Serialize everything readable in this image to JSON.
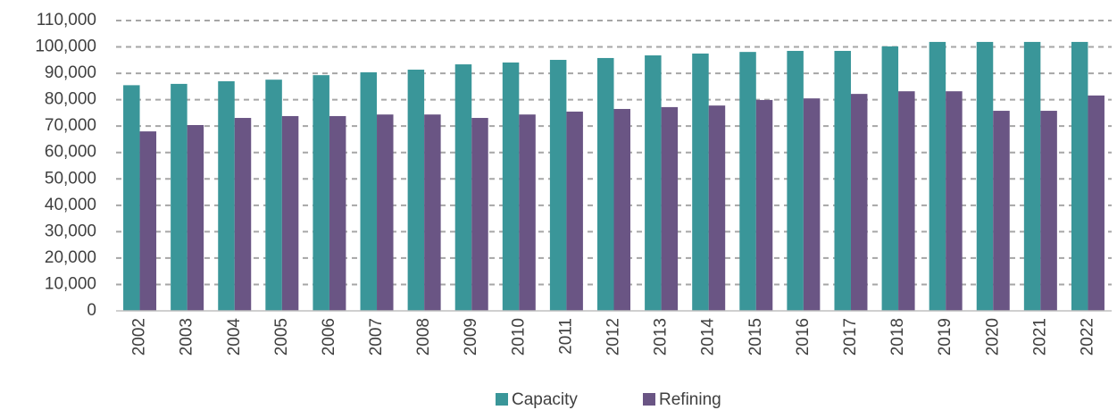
{
  "chart_data": {
    "type": "bar",
    "categories": [
      "2002",
      "2003",
      "2004",
      "2005",
      "2006",
      "2007",
      "2008",
      "2009",
      "2010",
      "2011",
      "2012",
      "2013",
      "2014",
      "2015",
      "2016",
      "2017",
      "2018",
      "2019",
      "2020",
      "2021",
      "2022"
    ],
    "series": [
      {
        "name": "Capacity",
        "color": "#3a9699",
        "values": [
          85500,
          86000,
          87000,
          87600,
          89300,
          90400,
          91400,
          93400,
          94100,
          95100,
          95800,
          96800,
          97500,
          98100,
          98500,
          98500,
          100200,
          101900,
          101900,
          101900,
          101900
        ]
      },
      {
        "name": "Refining",
        "color": "#6a5584",
        "values": [
          68000,
          70400,
          73100,
          73800,
          73800,
          74400,
          74400,
          73100,
          74400,
          75500,
          76500,
          77200,
          77800,
          79900,
          80500,
          82200,
          83200,
          83200,
          75800,
          75800,
          81600
        ]
      }
    ],
    "ylim": [
      0,
      110000
    ],
    "yticks": [
      0,
      {
        "value": 10000,
        "label": "10,000"
      },
      {
        "value": 20000,
        "label": "20,000"
      },
      {
        "value": 30000,
        "label": "30,000"
      },
      {
        "value": 40000,
        "label": "40,000"
      },
      {
        "value": 50000,
        "label": "50,000"
      },
      {
        "value": 60000,
        "label": "60,000"
      },
      {
        "value": 70000,
        "label": "70,000"
      },
      {
        "value": 80000,
        "label": "80,000"
      },
      {
        "value": 90000,
        "label": "90,000"
      },
      {
        "value": 100000,
        "label": "100,000"
      },
      {
        "value": 110000,
        "label": "110,000"
      }
    ],
    "grid": true,
    "legend": "bottom"
  }
}
